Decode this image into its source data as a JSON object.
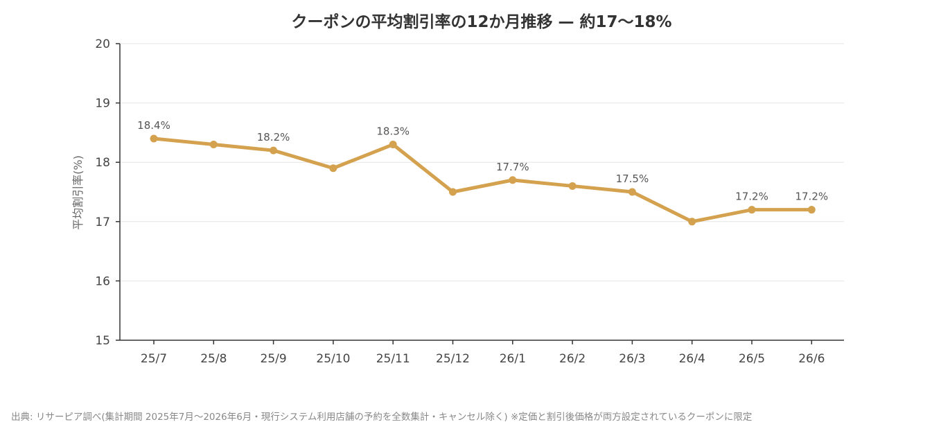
{
  "chart_data": {
    "type": "line",
    "title": "クーポンの平均割引率の12か月推移 — 約17〜18%",
    "xlabel": "",
    "ylabel": "平均割引率(%)",
    "ylim": [
      15,
      20
    ],
    "yticks": [
      "15",
      "16",
      "17",
      "18",
      "19",
      "20"
    ],
    "categories": [
      "25/7",
      "25/8",
      "25/9",
      "25/10",
      "25/11",
      "25/12",
      "26/1",
      "26/2",
      "26/3",
      "26/4",
      "26/5",
      "26/6"
    ],
    "series": [
      {
        "values": [
          18.4,
          18.3,
          18.2,
          17.9,
          18.3,
          17.5,
          17.7,
          17.6,
          17.5,
          17.0,
          17.2,
          17.2
        ],
        "color": "#D4A24F"
      }
    ],
    "data_labels": [
      {
        "index": 0,
        "text": "18.4%"
      },
      {
        "index": 2,
        "text": "18.2%"
      },
      {
        "index": 4,
        "text": "18.3%"
      },
      {
        "index": 6,
        "text": "17.7%"
      },
      {
        "index": 8,
        "text": "17.5%"
      },
      {
        "index": 10,
        "text": "17.2%"
      },
      {
        "index": 11,
        "text": "17.2%"
      }
    ],
    "grid": true,
    "legend": "none"
  },
  "source_note": "出典: リサーピア調べ(集計期間 2025年7月〜2026年6月・現行システム利用店舗の予約を全数集計・キャンセル除く) ※定価と割引後価格が両方設定されているクーポンに限定"
}
